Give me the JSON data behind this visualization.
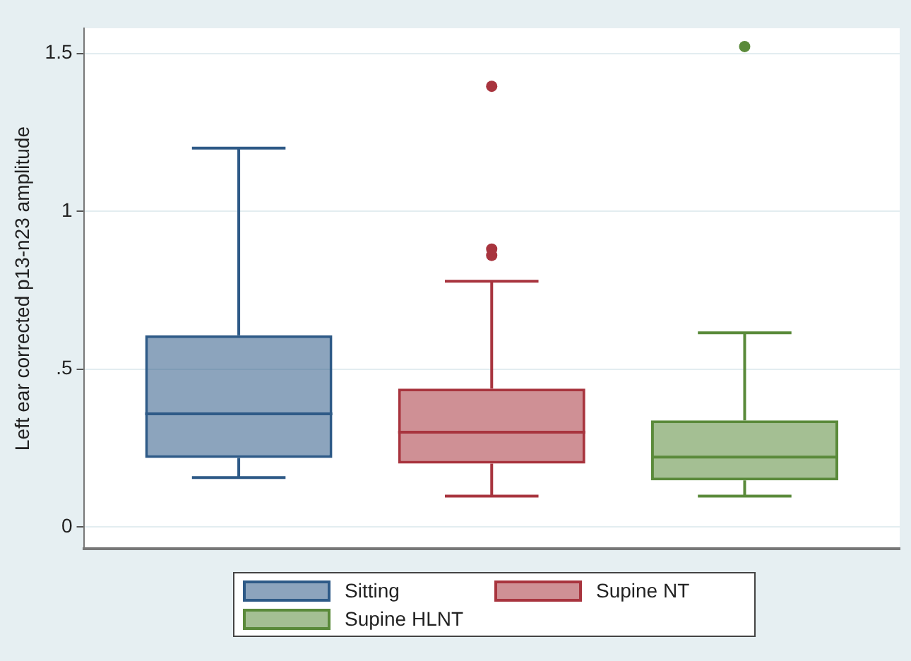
{
  "chart_data": {
    "type": "box",
    "ylabel": "Left ear corrected p13-n23 amplitude",
    "categories": [
      null
    ],
    "series": [
      {
        "name": "Sitting",
        "color": "#2e5a87",
        "boxes": [
          {
            "low": 0.156,
            "q1": 0.218,
            "median": 0.358,
            "q3": 0.607,
            "high": 1.2
          }
        ]
      },
      {
        "name": "Supine NT",
        "color": "#a8343e",
        "boxes": [
          {
            "low": 0.097,
            "q1": 0.2,
            "median": 0.3,
            "q3": 0.438,
            "high": 0.778,
            "outliers": [
              0.86,
              0.88,
              1.396
            ]
          }
        ]
      },
      {
        "name": "Supine HLNT",
        "color": "#5a8a3a",
        "boxes": [
          {
            "low": 0.097,
            "q1": 0.147,
            "median": 0.221,
            "q3": 0.337,
            "high": 0.615,
            "outliers": [
              1.522
            ]
          }
        ]
      }
    ],
    "ylim": [
      -0.07,
      1.58
    ],
    "yticks": [
      0,
      {
        "value": 0.5,
        "label": ".5"
      },
      1,
      1.5
    ],
    "grid": "y",
    "legend": "bottom"
  }
}
